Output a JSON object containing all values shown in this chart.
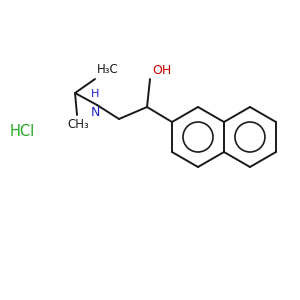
{
  "background_color": "#ffffff",
  "bond_color": "#1a1a1a",
  "oh_color": "#cc0000",
  "nh_color": "#2222cc",
  "hcl_color": "#22aa22",
  "figsize": [
    3.0,
    3.0
  ],
  "dpi": 100,
  "xlim": [
    0,
    300
  ],
  "ylim": [
    0,
    300
  ]
}
